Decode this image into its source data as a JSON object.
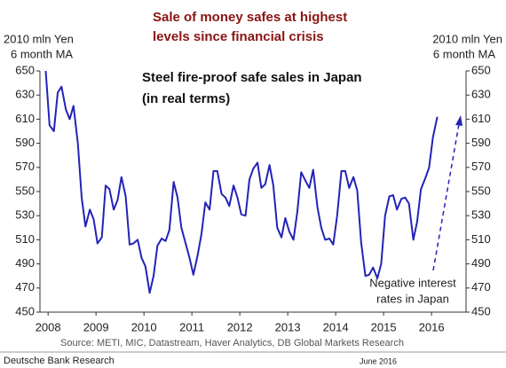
{
  "chart_data": {
    "type": "line",
    "title": [
      "Sale of money safes at highest",
      "levels since financial crisis"
    ],
    "subtitle": [
      "Steel fire-proof safe sales in Japan",
      "(in real terms)"
    ],
    "y_label": [
      "2010 mln Yen",
      "6 month MA"
    ],
    "y2_label": [
      "2010 mln Yen",
      "6 month MA"
    ],
    "annotation": [
      "Negative interest",
      "rates in Japan"
    ],
    "source": "Source: METI, MIC, Datastream, Haver Analytics, DB Global Markets Research",
    "footer": "Deutsche Bank Research",
    "date": "June 2016",
    "x": [
      2007.95,
      2008.03,
      2008.12,
      2008.2,
      2008.28,
      2008.37,
      2008.45,
      2008.53,
      2008.62,
      2008.7,
      2008.78,
      2008.87,
      2008.95,
      2009.03,
      2009.12,
      2009.2,
      2009.28,
      2009.37,
      2009.45,
      2009.53,
      2009.62,
      2009.7,
      2009.78,
      2009.87,
      2009.95,
      2010.03,
      2010.12,
      2010.2,
      2010.28,
      2010.37,
      2010.45,
      2010.53,
      2010.62,
      2010.7,
      2010.78,
      2010.87,
      2010.95,
      2011.03,
      2011.12,
      2011.2,
      2011.28,
      2011.37,
      2011.45,
      2011.53,
      2011.62,
      2011.7,
      2011.78,
      2011.87,
      2011.95,
      2012.03,
      2012.12,
      2012.2,
      2012.28,
      2012.37,
      2012.45,
      2012.53,
      2012.62,
      2012.7,
      2012.78,
      2012.87,
      2012.95,
      2013.03,
      2013.12,
      2013.2,
      2013.28,
      2013.37,
      2013.45,
      2013.53,
      2013.62,
      2013.7,
      2013.78,
      2013.87,
      2013.95,
      2014.03,
      2014.12,
      2014.2,
      2014.28,
      2014.37,
      2014.45,
      2014.53,
      2014.62,
      2014.7,
      2014.78,
      2014.87,
      2014.95,
      2015.03,
      2015.12,
      2015.2,
      2015.28,
      2015.37,
      2015.45,
      2015.53,
      2015.62,
      2015.7,
      2015.78,
      2015.87,
      2015.95,
      2016.03,
      2016.12
    ],
    "series": [
      {
        "name": "Steel fire-proof safe sales",
        "color": "#2323b8",
        "values": [
          650,
          605,
          600,
          632,
          637,
          618,
          610,
          621,
          590,
          545,
          521,
          535,
          527,
          507,
          512,
          555,
          552,
          535,
          543,
          562,
          546,
          506,
          507,
          510,
          495,
          488,
          466,
          480,
          505,
          511,
          509,
          518,
          558,
          545,
          520,
          507,
          495,
          481,
          497,
          515,
          541,
          535,
          567,
          567,
          548,
          545,
          538,
          555,
          545,
          531,
          530,
          560,
          569,
          574,
          553,
          556,
          572,
          555,
          520,
          512,
          528,
          517,
          510,
          533,
          566,
          559,
          553,
          568,
          537,
          520,
          510,
          511,
          506,
          530,
          567,
          567,
          553,
          562,
          551,
          508,
          480,
          481,
          487,
          478,
          490,
          530,
          546,
          547,
          535,
          544,
          545,
          540,
          510,
          525,
          552,
          561,
          570,
          595,
          612
        ]
      }
    ],
    "xlim": [
      2007.83,
      2016.72
    ],
    "xticks": [
      2008,
      2009,
      2010,
      2011,
      2012,
      2013,
      2014,
      2015,
      2016
    ],
    "ylim": [
      450,
      650
    ],
    "yticks": [
      450,
      470,
      490,
      510,
      530,
      550,
      570,
      590,
      610,
      630,
      650
    ],
    "y2lim": [
      450,
      650
    ],
    "y2ticks": [
      450,
      470,
      490,
      510,
      530,
      550,
      570,
      590,
      610,
      630,
      650
    ]
  }
}
